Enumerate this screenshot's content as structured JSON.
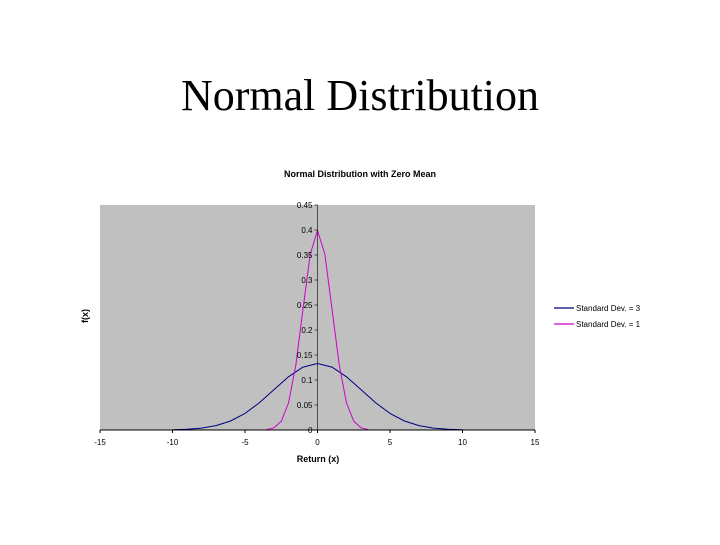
{
  "slide": {
    "title": "Normal Distribution"
  },
  "chart_data": {
    "type": "line",
    "title": "Normal Distribution with Zero Mean",
    "xlabel": "Return (x)",
    "ylabel": "f(x)",
    "xlim": [
      -15,
      15
    ],
    "ylim": [
      0,
      0.45
    ],
    "x_ticks": [
      -15,
      -10,
      -5,
      0,
      5,
      10,
      15
    ],
    "y_ticks": [
      0,
      0.05,
      0.1,
      0.15,
      0.2,
      0.25,
      0.3,
      0.35,
      0.4,
      0.45
    ],
    "plot_bg": "#c0c0c0",
    "grid": false,
    "legend_position": "right",
    "series": [
      {
        "name": "Standard Dev. = 3",
        "color": "#000080",
        "x": [
          -10,
          -9,
          -8,
          -7,
          -6,
          -5,
          -4,
          -3,
          -2,
          -1,
          0,
          1,
          2,
          3,
          4,
          5,
          6,
          7,
          8,
          9,
          10
        ],
        "y": [
          0.0005,
          0.0015,
          0.0038,
          0.0087,
          0.018,
          0.0332,
          0.0547,
          0.0807,
          0.1065,
          0.1258,
          0.133,
          0.1258,
          0.1065,
          0.0807,
          0.0547,
          0.0332,
          0.018,
          0.0087,
          0.0038,
          0.0015,
          0.0005
        ]
      },
      {
        "name": "Standard Dev. = 1",
        "color": "#cc00cc",
        "x": [
          -3.5,
          -3,
          -2.5,
          -2,
          -1.5,
          -1,
          -0.5,
          0,
          0.5,
          1,
          1.5,
          2,
          2.5,
          3,
          3.5
        ],
        "y": [
          0.0009,
          0.0044,
          0.0175,
          0.054,
          0.1295,
          0.242,
          0.3521,
          0.3989,
          0.3521,
          0.242,
          0.1295,
          0.054,
          0.0175,
          0.0044,
          0.0009
        ]
      }
    ]
  }
}
